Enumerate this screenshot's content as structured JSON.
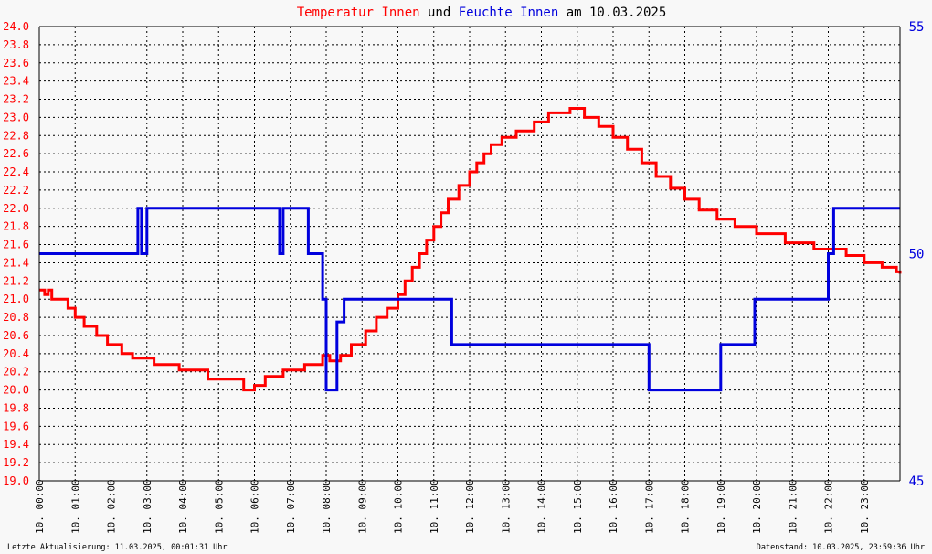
{
  "title": {
    "part1": "Temperatur Innen",
    "part2": " und ",
    "part3": "Feuchte Innen",
    "part4": " am 10.03.2025"
  },
  "footer": {
    "left": "Letzte Aktualisierung: 11.03.2025, 00:01:31 Uhr",
    "right": "Datenstand: 10.03.2025, 23:59:36 Uhr"
  },
  "colors": {
    "temperature": "#ff0000",
    "humidity": "#0000dd",
    "grid": "#000000",
    "background": "#f8f8f8"
  },
  "chart_data": {
    "type": "line",
    "grid": true,
    "x_tick_labels": [
      "10. 00:00",
      "10. 01:00",
      "10. 02:00",
      "10. 03:00",
      "10. 04:00",
      "10. 05:00",
      "10. 06:00",
      "10. 07:00",
      "10. 08:00",
      "10. 09:00",
      "10. 10:00",
      "10. 11:00",
      "10. 12:00",
      "10. 13:00",
      "10. 14:00",
      "10. 15:00",
      "10. 16:00",
      "10. 17:00",
      "10. 18:00",
      "10. 19:00",
      "10. 20:00",
      "10. 21:00",
      "10. 22:00",
      "10. 23:00"
    ],
    "y_left": {
      "range": [
        19.0,
        24.0
      ],
      "tick_labels": [
        "19.0",
        "19.2",
        "19.4",
        "19.6",
        "19.8",
        "20.0",
        "20.2",
        "20.4",
        "20.6",
        "20.8",
        "21.0",
        "21.2",
        "21.4",
        "21.6",
        "21.8",
        "22.0",
        "22.2",
        "22.4",
        "22.6",
        "22.8",
        "23.0",
        "23.2",
        "23.4",
        "23.6",
        "23.8",
        "24.0"
      ]
    },
    "y_right": {
      "range": [
        45,
        55
      ],
      "tick_labels": [
        "45",
        "50",
        "55"
      ]
    },
    "series": [
      {
        "name": "Temperatur Innen",
        "axis": "left",
        "x_hours": [
          0.0,
          0.15,
          0.25,
          0.35,
          0.8,
          1.0,
          1.25,
          1.6,
          1.9,
          2.3,
          2.6,
          3.2,
          3.9,
          4.7,
          5.7,
          6.0,
          6.3,
          6.8,
          7.4,
          7.9,
          8.1,
          8.4,
          8.7,
          9.1,
          9.4,
          9.7,
          10.0,
          10.2,
          10.4,
          10.6,
          10.8,
          11.0,
          11.2,
          11.4,
          11.7,
          12.0,
          12.2,
          12.4,
          12.6,
          12.9,
          13.3,
          13.8,
          14.2,
          14.8,
          15.2,
          15.6,
          16.0,
          16.4,
          16.8,
          17.2,
          17.6,
          18.0,
          18.4,
          18.9,
          19.4,
          20.0,
          20.8,
          21.6,
          22.5,
          23.0,
          23.5,
          23.9,
          24.0
        ],
        "values": [
          21.1,
          21.05,
          21.1,
          21.0,
          20.9,
          20.8,
          20.7,
          20.6,
          20.5,
          20.4,
          20.35,
          20.28,
          20.22,
          20.12,
          20.0,
          20.05,
          20.15,
          20.22,
          20.28,
          20.38,
          20.32,
          20.38,
          20.5,
          20.65,
          20.8,
          20.9,
          21.05,
          21.2,
          21.35,
          21.5,
          21.65,
          21.8,
          21.95,
          22.1,
          22.25,
          22.4,
          22.5,
          22.6,
          22.7,
          22.78,
          22.85,
          22.95,
          23.05,
          23.1,
          23.0,
          22.9,
          22.78,
          22.65,
          22.5,
          22.35,
          22.22,
          22.1,
          21.98,
          21.88,
          21.8,
          21.72,
          21.62,
          21.55,
          21.48,
          21.4,
          21.35,
          21.3,
          21.28
        ]
      },
      {
        "name": "Feuchte Innen",
        "axis": "right",
        "x_hours": [
          0.0,
          2.7,
          2.75,
          2.85,
          3.0,
          6.6,
          6.7,
          6.8,
          7.5,
          7.9,
          8.0,
          8.3,
          8.5,
          11.4,
          11.5,
          13.9,
          17.0,
          19.0,
          19.95,
          22.0,
          22.15,
          22.4,
          24.0
        ],
        "values": [
          50,
          50,
          51,
          50,
          51,
          51,
          50,
          51,
          50,
          49,
          47,
          48.5,
          49,
          49,
          48,
          48,
          47,
          48,
          49,
          50,
          51,
          51,
          51
        ]
      }
    ]
  }
}
